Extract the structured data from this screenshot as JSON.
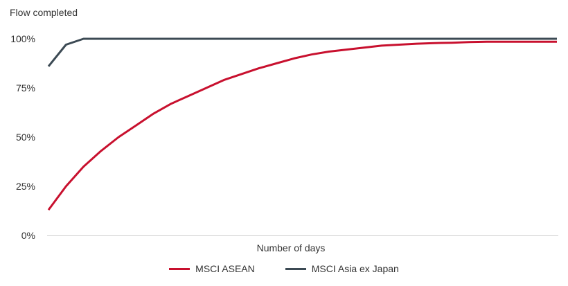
{
  "chart_data": {
    "type": "line",
    "ylabel": "Flow completed",
    "xlabel": "Number of days",
    "ylim": [
      0,
      100
    ],
    "yticks": [
      "0%",
      "25%",
      "50%",
      "75%",
      "100%"
    ],
    "ytick_values": [
      0,
      25,
      50,
      75,
      100
    ],
    "x": [
      1,
      2,
      3,
      4,
      5,
      6,
      7,
      8,
      9,
      10,
      11,
      12,
      13,
      14,
      15,
      16,
      17,
      18,
      19,
      20,
      21,
      22,
      23,
      24,
      25,
      26,
      27,
      28,
      29,
      30
    ],
    "series": [
      {
        "name": "MSCI ASEAN",
        "color": "#c8102e",
        "values": [
          13,
          25,
          35,
          43,
          50,
          56,
          62,
          67,
          71,
          75,
          79,
          82,
          85,
          87.5,
          90,
          92,
          93.5,
          94.5,
          95.5,
          96.5,
          97,
          97.5,
          97.8,
          98,
          98.3,
          98.5,
          98.5,
          98.5,
          98.5,
          98.5
        ]
      },
      {
        "name": "MSCI Asia ex Japan",
        "color": "#3c4a54",
        "values": [
          86,
          97,
          100,
          100,
          100,
          100,
          100,
          100,
          100,
          100,
          100,
          100,
          100,
          100,
          100,
          100,
          100,
          100,
          100,
          100,
          100,
          100,
          100,
          100,
          100,
          100,
          100,
          100,
          100,
          100
        ]
      }
    ],
    "grid": false,
    "legend_position": "bottom-center"
  }
}
